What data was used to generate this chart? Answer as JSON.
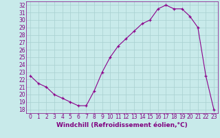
{
  "hours": [
    0,
    1,
    2,
    3,
    4,
    5,
    6,
    7,
    8,
    9,
    10,
    11,
    12,
    13,
    14,
    15,
    16,
    17,
    18,
    19,
    20,
    21,
    22,
    23
  ],
  "values": [
    22.5,
    21.5,
    21.0,
    20.0,
    19.5,
    19.0,
    18.5,
    18.5,
    20.5,
    23.0,
    25.0,
    26.5,
    27.5,
    28.5,
    29.5,
    30.0,
    31.5,
    32.0,
    31.5,
    31.5,
    30.5,
    29.0,
    22.5,
    18.0
  ],
  "line_color": "#8B008B",
  "marker": "+",
  "bg_color": "#c8eaea",
  "xlabel": "Windchill (Refroidissement éolien,°C)",
  "ylim": [
    17.5,
    32.5
  ],
  "xlim": [
    -0.5,
    23.5
  ],
  "yticks": [
    18,
    19,
    20,
    21,
    22,
    23,
    24,
    25,
    26,
    27,
    28,
    29,
    30,
    31,
    32
  ],
  "xticks": [
    0,
    1,
    2,
    3,
    4,
    5,
    6,
    7,
    8,
    9,
    10,
    11,
    12,
    13,
    14,
    15,
    16,
    17,
    18,
    19,
    20,
    21,
    22,
    23
  ],
  "grid_color": "#a8d0d0",
  "axis_color": "#800080",
  "tick_color": "#800080",
  "xlabel_color": "#800080",
  "xlabel_fontsize": 6.5,
  "tick_fontsize": 5.5
}
